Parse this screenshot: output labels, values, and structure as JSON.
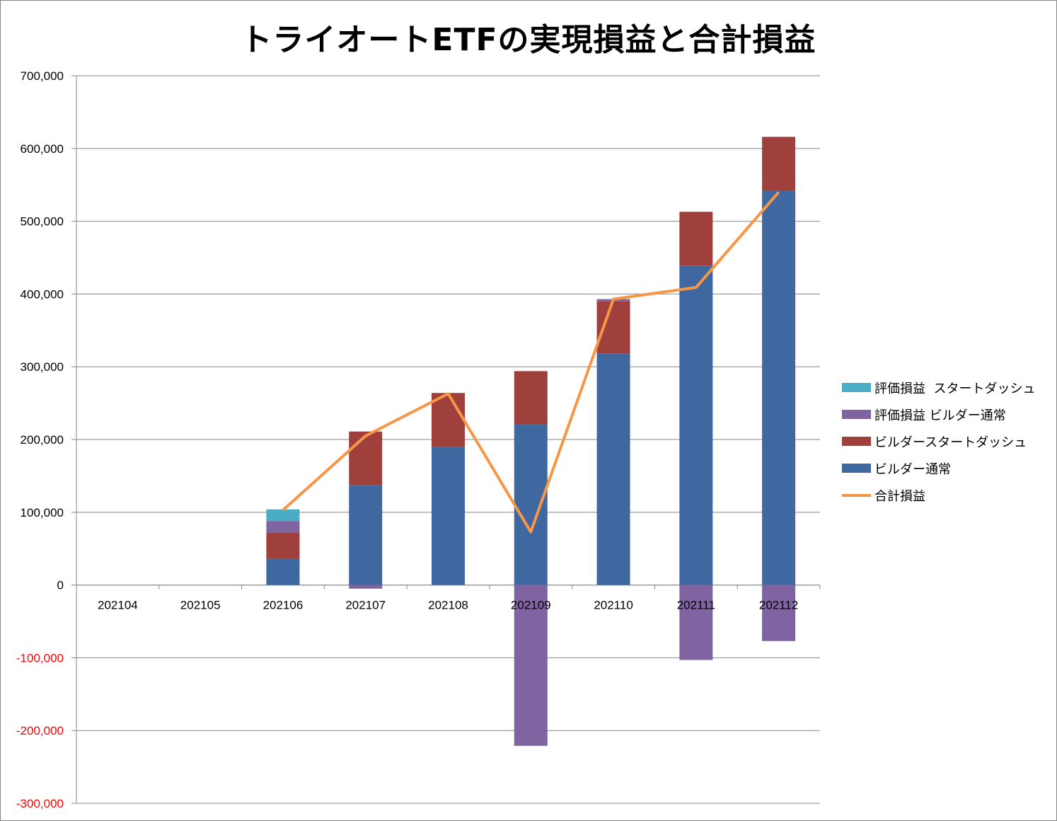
{
  "chart_data": {
    "type": "bar",
    "title": "トライオートETFの実現損益と合計損益",
    "categories": [
      "202104",
      "202105",
      "202106",
      "202107",
      "202108",
      "202109",
      "202110",
      "202111",
      "202112"
    ],
    "ylim": [
      -300000,
      700000
    ],
    "yticks": [
      700000,
      600000,
      500000,
      400000,
      300000,
      200000,
      100000,
      0,
      -100000,
      -200000,
      -300000
    ],
    "ytick_labels": [
      "700,000",
      "600,000",
      "500,000",
      "400,000",
      "300,000",
      "200,000",
      "100,000",
      "0",
      "-100,000",
      "-200,000",
      "-300,000"
    ],
    "grid": true,
    "legend_position": "right",
    "negative_tick_color": "#ff0000",
    "series": [
      {
        "name": "ビルダー通常",
        "kind": "stacked-bar",
        "color": "#4068a0",
        "values": [
          0,
          0,
          36000,
          137000,
          190000,
          221000,
          318000,
          439000,
          542000
        ]
      },
      {
        "name": "ビルダースタートダッシュ",
        "kind": "stacked-bar",
        "color": "#a0403d",
        "values": [
          0,
          0,
          36000,
          74000,
          74000,
          73000,
          72000,
          74000,
          74000
        ]
      },
      {
        "name": "評価損益 ビルダー通常",
        "kind": "stacked-bar",
        "color": "#8064a2",
        "values": [
          0,
          0,
          16000,
          -5000,
          0,
          -221000,
          3000,
          -103000,
          -77000
        ]
      },
      {
        "name": "評価損益  スタートダッシュ",
        "kind": "stacked-bar",
        "color": "#4bacc6",
        "values": [
          0,
          0,
          16000,
          0,
          0,
          0,
          0,
          0,
          0
        ]
      },
      {
        "name": "合計損益",
        "kind": "line",
        "color": "#f79646",
        "values": [
          null,
          null,
          103000,
          205000,
          263000,
          73000,
          393000,
          409000,
          540000
        ]
      }
    ],
    "legend_order": [
      3,
      2,
      1,
      0,
      4
    ]
  }
}
